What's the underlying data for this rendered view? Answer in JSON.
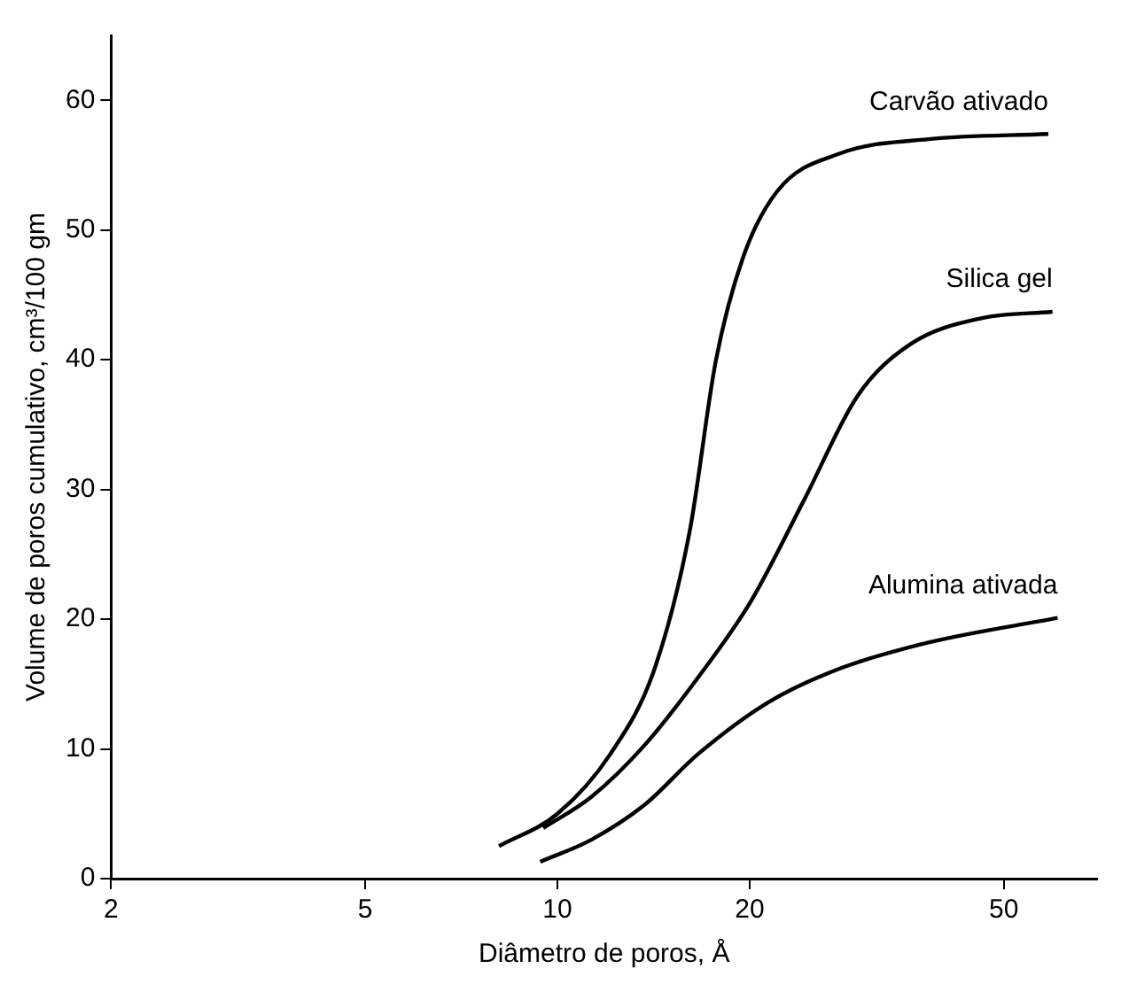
{
  "chart_data": {
    "type": "line",
    "xlabel": "Diâmetro de poros, Å",
    "ylabel": "Volume de poros cumulativo, cm³/100 gm",
    "log": "x",
    "xlim": [
      2,
      70
    ],
    "xticks": [
      2,
      5,
      10,
      20,
      50
    ],
    "ylim": [
      0,
      65
    ],
    "yticks": [
      0,
      10,
      20,
      30,
      40,
      50,
      60
    ],
    "grid": false,
    "legend": false,
    "marker": "none",
    "line_style": "solid",
    "series": [
      {
        "name": "Carvão ativado",
        "color": "#000000",
        "x": [
          8.1,
          10,
          12.1,
          14.2,
          16.1,
          17.7,
          19.5,
          22.1,
          27.7,
          38.1,
          58.7
        ],
        "values": [
          2.5,
          5,
          9.6,
          16.2,
          26.7,
          39.9,
          47.8,
          53,
          55.9,
          57,
          57.4
        ]
      },
      {
        "name": "Silica gel",
        "color": "#000000",
        "x": [
          9.5,
          11.3,
          13.7,
          16.6,
          20.1,
          24.4,
          29.5,
          35.7,
          46.1,
          59.6
        ],
        "values": [
          3.9,
          6.3,
          10.3,
          15.5,
          21.4,
          29.3,
          37.2,
          41.2,
          43.2,
          43.7
        ]
      },
      {
        "name": "Alumina ativada",
        "color": "#000000",
        "x": [
          9.4,
          11.3,
          13.7,
          16.6,
          21.4,
          27.7,
          38.1,
          60.7
        ],
        "values": [
          1.3,
          3,
          5.7,
          9.6,
          13.6,
          16.2,
          18.2,
          20.1
        ]
      }
    ]
  }
}
